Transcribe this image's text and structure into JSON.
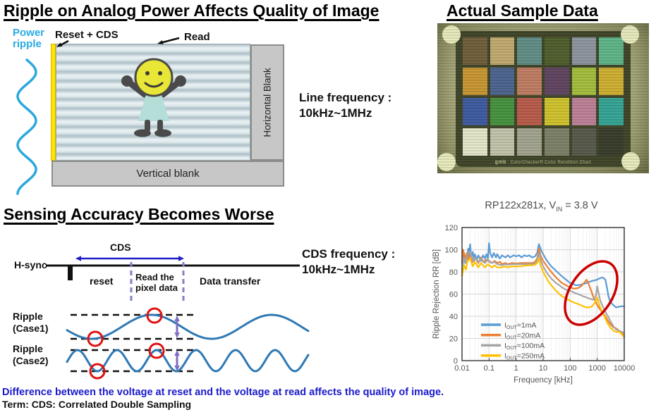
{
  "s1": {
    "title": "Ripple on Analog Power Affects Quality of Image",
    "power_ripple_l1": "Power",
    "power_ripple_l2": "ripple",
    "reset_cds": "Reset + CDS",
    "read": "Read",
    "horizontal_blank": "Horizontal Blank",
    "vertical_blank": "Vertical blank",
    "line_freq_l1": "Line frequency :",
    "line_freq_l2": "10kHz~1MHz"
  },
  "s2": {
    "title": "Actual Sample Data",
    "caption_brand": "gmb",
    "caption": "ColorChecker® Color Rendition Chart",
    "patch_colors": [
      "#6e5c39",
      "#c2a96e",
      "#5e8c85",
      "#4c5c2a",
      "#8b94a0",
      "#5cb388",
      "#c79430",
      "#49618e",
      "#bf7a61",
      "#5e4060",
      "#a2bd3a",
      "#cfae2e",
      "#3a57a0",
      "#42903e",
      "#b85848",
      "#cfc12a",
      "#bd7e98",
      "#31a296",
      "#e5e7cb",
      "#c2c3ab",
      "#a1a290",
      "#7b7e66",
      "#54564a",
      "#343827"
    ]
  },
  "s3": {
    "title": "Sensing Accuracy Becomes Worse",
    "h_sync": "H-sync",
    "cds": "CDS",
    "reset": "reset",
    "read_pixel_l1": "Read the",
    "read_pixel_l2": "pixel data",
    "data_transfer": "Data transfer",
    "cds_freq_l1": "CDS frequency :",
    "cds_freq_l2": "10kHz~1MHz",
    "case1_l1": "Ripple",
    "case1_l2": "(Case1)",
    "case2_l1": "Ripple",
    "case2_l2": "(Case2)"
  },
  "chart_data": {
    "type": "line",
    "title_pre": "RP122x281x, V",
    "title_sub": "IN",
    "title_post": " = 3.8 V",
    "xlabel": "Frequency [kHz]",
    "ylabel": "Ripple Rejection RR [dB]",
    "x_scale": "log",
    "xlim": [
      0.01,
      10000
    ],
    "ylim": [
      0,
      120
    ],
    "x_tick_labels": [
      "0.01",
      "0.1",
      "1",
      "10",
      "100",
      "1000",
      "10000"
    ],
    "y_ticks": [
      0,
      20,
      40,
      60,
      80,
      100,
      120
    ],
    "grid": true,
    "legend_position": "lower-left-inside",
    "annotation": {
      "shape": "ellipse",
      "color": "#CC0000",
      "note": "circles the RR peaks/roll-off between 100 and 2000 kHz"
    },
    "series": [
      {
        "label_pre": "I",
        "label_sub": "OUT",
        "label_post": "=1mA",
        "label": "IOUT=1mA",
        "color": "#5B9BD5",
        "points": [
          [
            0.01,
            80
          ],
          [
            0.011,
            90
          ],
          [
            0.012,
            97
          ],
          [
            0.013,
            88
          ],
          [
            0.015,
            92
          ],
          [
            0.017,
            101
          ],
          [
            0.018,
            94
          ],
          [
            0.02,
            105
          ],
          [
            0.022,
            93
          ],
          [
            0.025,
            98
          ],
          [
            0.028,
            90
          ],
          [
            0.03,
            96
          ],
          [
            0.035,
            91
          ],
          [
            0.04,
            95
          ],
          [
            0.05,
            90
          ],
          [
            0.06,
            95
          ],
          [
            0.07,
            92
          ],
          [
            0.08,
            96
          ],
          [
            0.09,
            92
          ],
          [
            0.1,
            106
          ],
          [
            0.11,
            97
          ],
          [
            0.13,
            93
          ],
          [
            0.15,
            97
          ],
          [
            0.18,
            93
          ],
          [
            0.2,
            96
          ],
          [
            0.25,
            92
          ],
          [
            0.3,
            95
          ],
          [
            0.4,
            93
          ],
          [
            0.5,
            95
          ],
          [
            0.6,
            93
          ],
          [
            0.8,
            95
          ],
          [
            1,
            94
          ],
          [
            1.3,
            95
          ],
          [
            1.6,
            93
          ],
          [
            2,
            95
          ],
          [
            2.5,
            94
          ],
          [
            3,
            95
          ],
          [
            4,
            93
          ],
          [
            5,
            94
          ],
          [
            6,
            97
          ],
          [
            7,
            105
          ],
          [
            7.5,
            103
          ],
          [
            8,
            101
          ],
          [
            9,
            98
          ],
          [
            10,
            96
          ],
          [
            13,
            91
          ],
          [
            16,
            88
          ],
          [
            20,
            85
          ],
          [
            30,
            81
          ],
          [
            40,
            78
          ],
          [
            50,
            76
          ],
          [
            70,
            73
          ],
          [
            100,
            70
          ],
          [
            130,
            69
          ],
          [
            160,
            68
          ],
          [
            200,
            68
          ],
          [
            300,
            69
          ],
          [
            400,
            70
          ],
          [
            500,
            71
          ],
          [
            700,
            72
          ],
          [
            1000,
            73
          ],
          [
            1300,
            74.5
          ],
          [
            1600,
            75
          ],
          [
            2000,
            73
          ],
          [
            2300,
            66
          ],
          [
            2600,
            58
          ],
          [
            3000,
            53
          ],
          [
            4000,
            50
          ],
          [
            5000,
            48
          ],
          [
            6000,
            48.5
          ],
          [
            8000,
            49
          ],
          [
            10000,
            49
          ]
        ]
      },
      {
        "label_pre": "I",
        "label_sub": "OUT",
        "label_post": "=20mA",
        "label": "IOUT=20mA",
        "color": "#ED7D31",
        "points": [
          [
            0.01,
            88
          ],
          [
            0.011,
            100
          ],
          [
            0.013,
            92
          ],
          [
            0.015,
            97
          ],
          [
            0.017,
            90
          ],
          [
            0.02,
            96
          ],
          [
            0.025,
            89
          ],
          [
            0.03,
            93
          ],
          [
            0.04,
            88
          ],
          [
            0.05,
            93
          ],
          [
            0.06,
            89
          ],
          [
            0.08,
            91
          ],
          [
            0.1,
            90
          ],
          [
            0.13,
            88
          ],
          [
            0.16,
            90
          ],
          [
            0.2,
            88
          ],
          [
            0.25,
            89
          ],
          [
            0.3,
            87
          ],
          [
            0.4,
            88
          ],
          [
            0.5,
            87
          ],
          [
            0.7,
            88
          ],
          [
            1,
            87.5
          ],
          [
            1.5,
            88
          ],
          [
            2,
            88
          ],
          [
            3,
            88
          ],
          [
            4,
            88
          ],
          [
            5,
            89
          ],
          [
            6,
            92
          ],
          [
            7,
            101
          ],
          [
            7.5,
            98
          ],
          [
            8,
            95
          ],
          [
            9,
            92
          ],
          [
            10,
            90
          ],
          [
            13,
            86
          ],
          [
            16,
            83
          ],
          [
            20,
            80
          ],
          [
            30,
            75
          ],
          [
            40,
            72
          ],
          [
            50,
            70
          ],
          [
            70,
            68
          ],
          [
            100,
            66
          ],
          [
            130,
            65
          ],
          [
            160,
            65
          ],
          [
            200,
            65.5
          ],
          [
            250,
            67
          ],
          [
            300,
            69
          ],
          [
            350,
            71
          ],
          [
            400,
            73
          ],
          [
            450,
            71
          ],
          [
            500,
            68
          ],
          [
            600,
            63
          ],
          [
            700,
            58
          ],
          [
            800,
            55
          ],
          [
            1000,
            50
          ],
          [
            1300,
            46
          ],
          [
            1600,
            43
          ],
          [
            2000,
            40
          ],
          [
            2500,
            36
          ],
          [
            3000,
            33
          ],
          [
            4000,
            30
          ],
          [
            5000,
            29
          ],
          [
            6500,
            27
          ],
          [
            8000,
            25
          ],
          [
            10000,
            22
          ]
        ]
      },
      {
        "label_pre": "I",
        "label_sub": "OUT",
        "label_post": "=100mA",
        "label": "IOUT=100mA",
        "color": "#A5A5A5",
        "points": [
          [
            0.01,
            82
          ],
          [
            0.012,
            93
          ],
          [
            0.014,
            88
          ],
          [
            0.016,
            96
          ],
          [
            0.02,
            98
          ],
          [
            0.025,
            90
          ],
          [
            0.03,
            93
          ],
          [
            0.04,
            89
          ],
          [
            0.05,
            92
          ],
          [
            0.07,
            88
          ],
          [
            0.09,
            91
          ],
          [
            0.1,
            89
          ],
          [
            0.13,
            88
          ],
          [
            0.16,
            89
          ],
          [
            0.2,
            87
          ],
          [
            0.3,
            86
          ],
          [
            0.4,
            87
          ],
          [
            0.5,
            86.5
          ],
          [
            0.7,
            87
          ],
          [
            1,
            87
          ],
          [
            1.5,
            87
          ],
          [
            2,
            87
          ],
          [
            3,
            87
          ],
          [
            4,
            87
          ],
          [
            5,
            87.5
          ],
          [
            6,
            90
          ],
          [
            7,
            97
          ],
          [
            7.5,
            94
          ],
          [
            8,
            91
          ],
          [
            9,
            88
          ],
          [
            10,
            85
          ],
          [
            13,
            80
          ],
          [
            16,
            77
          ],
          [
            20,
            74
          ],
          [
            30,
            70
          ],
          [
            40,
            68
          ],
          [
            50,
            66
          ],
          [
            70,
            64
          ],
          [
            100,
            63
          ],
          [
            150,
            61
          ],
          [
            200,
            60
          ],
          [
            300,
            58
          ],
          [
            400,
            57
          ],
          [
            500,
            56
          ],
          [
            600,
            55.5
          ],
          [
            700,
            55
          ],
          [
            800,
            56
          ],
          [
            900,
            59
          ],
          [
            1000,
            67
          ],
          [
            1100,
            62
          ],
          [
            1300,
            54
          ],
          [
            1600,
            49
          ],
          [
            2000,
            44
          ],
          [
            2500,
            40
          ],
          [
            3000,
            36
          ],
          [
            4000,
            31
          ],
          [
            5000,
            28
          ],
          [
            6500,
            27
          ],
          [
            8000,
            26
          ],
          [
            10000,
            25
          ]
        ]
      },
      {
        "label_pre": "I",
        "label_sub": "OUT",
        "label_post": "=250mA",
        "label": "IOUT=250mA",
        "color": "#FFC000",
        "points": [
          [
            0.01,
            76
          ],
          [
            0.012,
            86
          ],
          [
            0.014,
            82
          ],
          [
            0.016,
            90
          ],
          [
            0.02,
            92
          ],
          [
            0.025,
            85
          ],
          [
            0.03,
            89
          ],
          [
            0.04,
            84
          ],
          [
            0.05,
            88
          ],
          [
            0.07,
            84
          ],
          [
            0.09,
            87
          ],
          [
            0.1,
            86
          ],
          [
            0.13,
            84
          ],
          [
            0.16,
            86
          ],
          [
            0.2,
            84
          ],
          [
            0.3,
            84
          ],
          [
            0.4,
            85
          ],
          [
            0.5,
            84
          ],
          [
            0.7,
            85
          ],
          [
            1,
            85
          ],
          [
            1.5,
            85
          ],
          [
            2,
            85.5
          ],
          [
            3,
            86
          ],
          [
            4,
            86
          ],
          [
            5,
            86.5
          ],
          [
            6,
            88
          ],
          [
            7,
            92
          ],
          [
            7.5,
            89
          ],
          [
            8,
            86
          ],
          [
            9,
            83
          ],
          [
            10,
            80
          ],
          [
            13,
            75
          ],
          [
            16,
            71
          ],
          [
            20,
            68
          ],
          [
            30,
            63
          ],
          [
            40,
            60
          ],
          [
            50,
            58
          ],
          [
            70,
            56
          ],
          [
            100,
            54
          ],
          [
            150,
            52
          ],
          [
            200,
            51
          ],
          [
            300,
            49
          ],
          [
            400,
            48
          ],
          [
            500,
            48
          ],
          [
            600,
            48.5
          ],
          [
            700,
            50
          ],
          [
            800,
            52
          ],
          [
            900,
            54
          ],
          [
            1000,
            57
          ],
          [
            1100,
            53
          ],
          [
            1300,
            48
          ],
          [
            1600,
            43
          ],
          [
            2000,
            38
          ],
          [
            2500,
            33
          ],
          [
            3000,
            30
          ],
          [
            4000,
            27
          ],
          [
            5000,
            26
          ],
          [
            6500,
            26
          ],
          [
            8000,
            24
          ],
          [
            10000,
            21
          ]
        ]
      }
    ]
  },
  "footer": {
    "note_blue": "Difference between the voltage at reset and the voltage at read affects the quality of image.",
    "note_term": "Term: CDS: Correlated Double Sampling"
  },
  "colors": {
    "power_ripple_label": "#29ABE2",
    "ripple_wave": "#2BA8DC",
    "waveform_blue": "#2E79B5",
    "cds_arrow_blue": "#1F1FC8",
    "dashed_purple": "#8080CC",
    "delta_arrow_purple": "#7F6FC0",
    "sample_circle_red": "#E01010",
    "annotation_red": "#CC0000",
    "note_blue_text": "#1A1ACD",
    "blank_box_gray": "#C7C7C7",
    "reset_column_yellow": "#FFE600"
  }
}
